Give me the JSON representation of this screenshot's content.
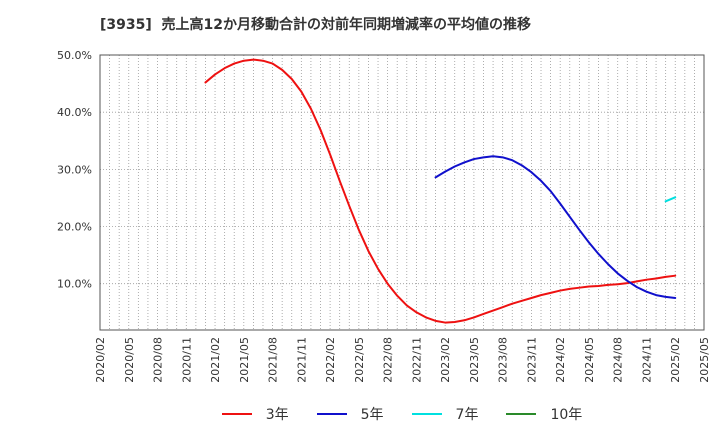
{
  "chart_data": {
    "type": "line",
    "title": "[3935]  売上高12か月移動合計の対前年同期増減率の平均値の推移",
    "x_start": {
      "year": 2020,
      "month": 2
    },
    "x_end": {
      "year": 2025,
      "month": 5
    },
    "x_ticks": [
      "2020/02",
      "2020/05",
      "2020/08",
      "2020/11",
      "2021/02",
      "2021/05",
      "2021/08",
      "2021/11",
      "2022/02",
      "2022/05",
      "2022/08",
      "2022/11",
      "2023/02",
      "2023/05",
      "2023/08",
      "2023/11",
      "2024/02",
      "2024/05",
      "2024/08",
      "2024/11",
      "2025/02",
      "2025/05"
    ],
    "ylim": [
      1.9,
      50.0
    ],
    "y_ticks": [
      10,
      20,
      30,
      40,
      50
    ],
    "y_tick_labels": [
      "10.0%",
      "20.0%",
      "30.0%",
      "40.0%",
      "50.0%"
    ],
    "grid": true,
    "legend_position": "bottom",
    "series": [
      {
        "name": "3年",
        "color": "#ee1111",
        "start_year": 2021,
        "start_month": 1,
        "values": [
          45.2,
          46.6,
          47.7,
          48.5,
          49.0,
          49.2,
          49.0,
          48.5,
          47.4,
          45.8,
          43.6,
          40.6,
          36.9,
          32.6,
          28.0,
          23.6,
          19.4,
          15.7,
          12.6,
          10.0,
          7.9,
          6.2,
          5.0,
          4.1,
          3.5,
          3.2,
          3.3,
          3.6,
          4.1,
          4.7,
          5.3,
          5.9,
          6.5,
          7.0,
          7.5,
          8.0,
          8.4,
          8.8,
          9.1,
          9.3,
          9.5,
          9.6,
          9.8,
          9.9,
          10.1,
          10.4,
          10.7,
          10.9,
          11.2,
          11.4
        ]
      },
      {
        "name": "5年",
        "color": "#1010cc",
        "start_year": 2023,
        "start_month": 1,
        "values": [
          28.6,
          29.6,
          30.5,
          31.2,
          31.8,
          32.1,
          32.3,
          32.1,
          31.6,
          30.7,
          29.5,
          28.0,
          26.2,
          24.0,
          21.7,
          19.4,
          17.2,
          15.2,
          13.4,
          11.8,
          10.5,
          9.4,
          8.6,
          8.0,
          7.7,
          7.5
        ]
      },
      {
        "name": "7年",
        "color": "#00e0e0",
        "start_year": 2025,
        "start_month": 1,
        "values": [
          24.4,
          25.1
        ]
      },
      {
        "name": "10年",
        "color": "#2a8a2a",
        "values": []
      }
    ]
  }
}
